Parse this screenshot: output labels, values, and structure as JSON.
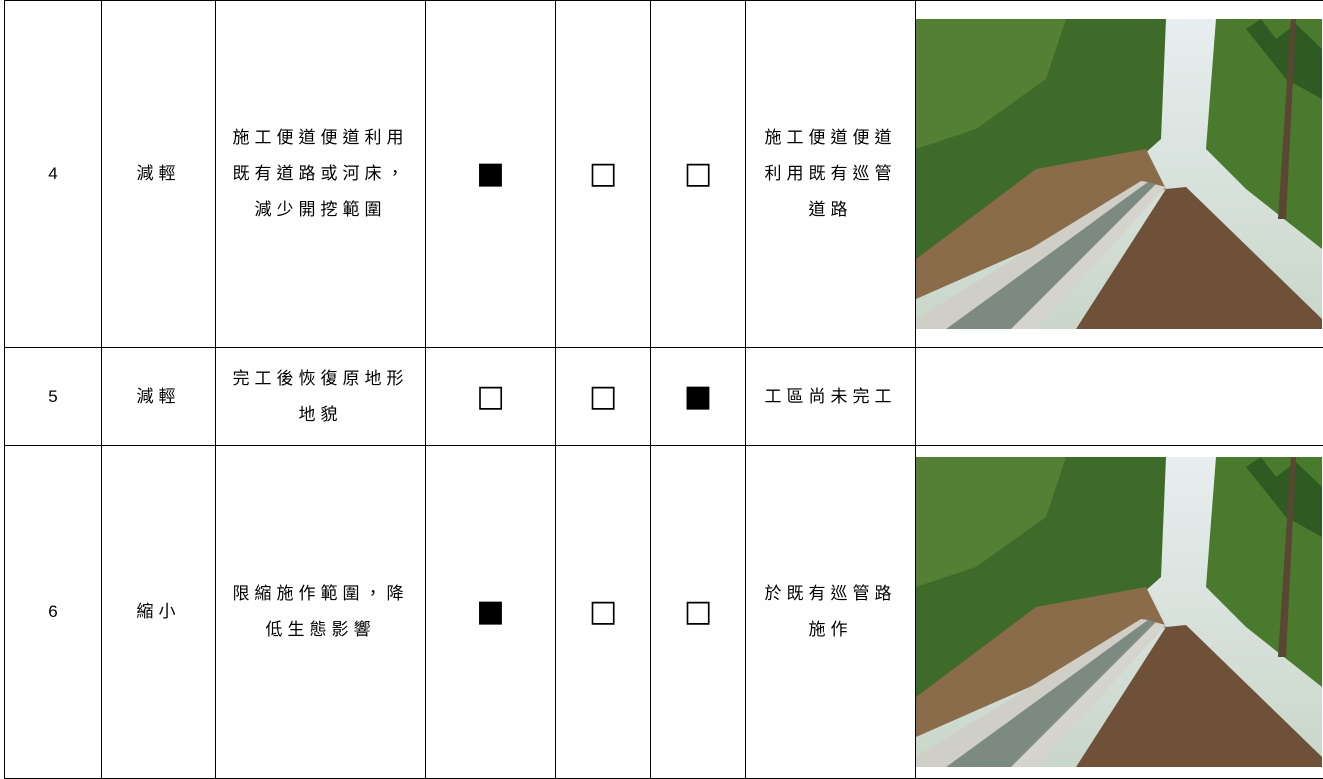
{
  "table": {
    "rows": [
      [
        "4",
        "減輕",
        "施工便道便道利用既有道路或河床，減少開挖範圍",
        "■",
        "□",
        "□",
        "施工便道便道利用既有巡管道路"
      ],
      [
        "5",
        "減輕",
        "完工後恢復原地形地貌",
        "□",
        "□",
        "■",
        "工區尚未完工"
      ],
      [
        "6",
        "縮小",
        "限縮施作範圍，降低生態影響",
        "■",
        "□",
        "□",
        "於既有巡管路施作"
      ]
    ]
  }
}
